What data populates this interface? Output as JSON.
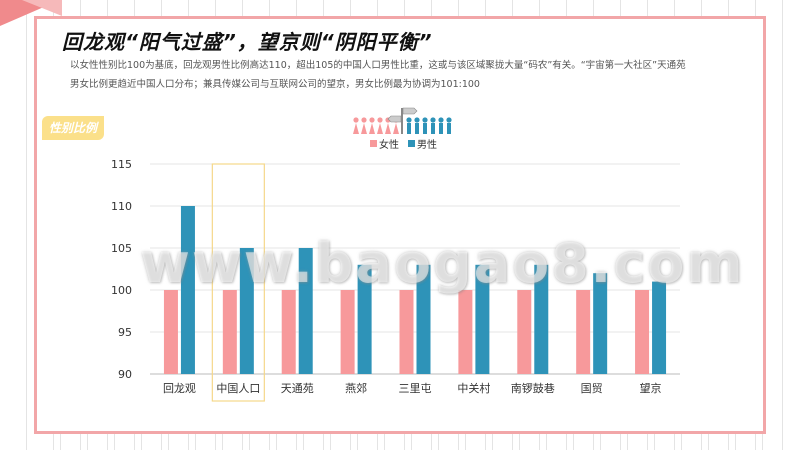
{
  "title": "回龙观“阳气过盛”，望京则“阴阳平衡”",
  "description": [
    "以女性性别比100为基底，回龙观男性比例高达110，超出105的中国人口男性比重，这或与该区域聚拢大量“码农”有关。“宇宙第一大社区”天通苑",
    "男女比例更趋近中国人口分布；兼具传媒公司与互联网公司的望京，男女比例最为协调为101:100"
  ],
  "tag_label": "性别比例",
  "watermark": "www.baogao8.com",
  "pictogram_icon": "gender-people-signpost-icon",
  "colors": {
    "female": "#f7999b",
    "male": "#2e93b8",
    "frame": "#f2a6a8",
    "highlight": "#f5d88a"
  },
  "chart_data": {
    "type": "bar",
    "categories": [
      "回龙观",
      "中国人口",
      "天通苑",
      "燕郊",
      "三里屯",
      "中关村",
      "南锣鼓巷",
      "国贸",
      "望京"
    ],
    "series": [
      {
        "name": "女性",
        "values": [
          100,
          100,
          100,
          100,
          100,
          100,
          100,
          100,
          100
        ]
      },
      {
        "name": "男性",
        "values": [
          110,
          105,
          105,
          103,
          103,
          103,
          103,
          102,
          101
        ]
      }
    ],
    "ylim": [
      90,
      115
    ],
    "yticks": [
      90,
      95,
      100,
      105,
      110,
      115
    ],
    "highlight_category": "中国人口",
    "legend": "top-center",
    "grid": true
  }
}
